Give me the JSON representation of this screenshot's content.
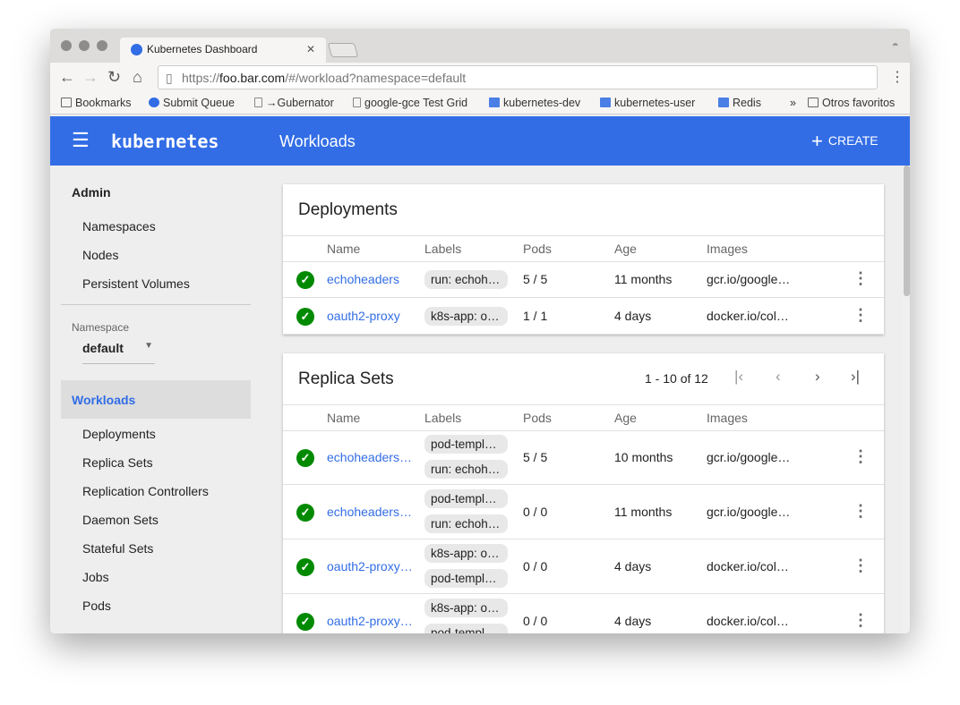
{
  "browser": {
    "tab_title": "Kubernetes Dashboard",
    "url_prefix": "https://",
    "url_host": "foo.bar.com",
    "url_path": "/#/workload?namespace=default",
    "bookmarks": [
      "Bookmarks",
      "Submit Queue",
      "→Gubernator",
      "google-gce Test Grid",
      "kubernetes-dev",
      "kubernetes-user",
      "Redis"
    ],
    "more": "»",
    "other": "Otros favoritos"
  },
  "header": {
    "logo": "kubernetes",
    "title": "Workloads",
    "create": "CREATE"
  },
  "sidebar": {
    "admin": "Admin",
    "admin_items": [
      "Namespaces",
      "Nodes",
      "Persistent Volumes"
    ],
    "namespace_label": "Namespace",
    "namespace_value": "default",
    "workloads": "Workloads",
    "workload_items": [
      "Deployments",
      "Replica Sets",
      "Replication Controllers",
      "Daemon Sets",
      "Stateful Sets",
      "Jobs",
      "Pods"
    ]
  },
  "columns": [
    "Name",
    "Labels",
    "Pods",
    "Age",
    "Images"
  ],
  "deployments": {
    "title": "Deployments",
    "rows": [
      {
        "name": "echoheaders",
        "labels": [
          "run: echoh…"
        ],
        "pods": "5 / 5",
        "age": "11 months",
        "images": "gcr.io/google…"
      },
      {
        "name": "oauth2-proxy",
        "labels": [
          "k8s-app: o…"
        ],
        "pods": "1 / 1",
        "age": "4 days",
        "images": "docker.io/col…"
      }
    ]
  },
  "replica_sets": {
    "title": "Replica Sets",
    "pagination": "1 - 10 of 12",
    "rows": [
      {
        "name": "echoheaders…",
        "labels": [
          "pod-templ…",
          "run: echoh…"
        ],
        "pods": "5 / 5",
        "age": "10 months",
        "images": "gcr.io/google…"
      },
      {
        "name": "echoheaders…",
        "labels": [
          "pod-templ…",
          "run: echoh…"
        ],
        "pods": "0 / 0",
        "age": "11 months",
        "images": "gcr.io/google…"
      },
      {
        "name": "oauth2-proxy…",
        "labels": [
          "k8s-app: o…",
          "pod-templ…"
        ],
        "pods": "0 / 0",
        "age": "4 days",
        "images": "docker.io/col…"
      },
      {
        "name": "oauth2-proxy…",
        "labels": [
          "k8s-app: o…",
          "pod-templ…"
        ],
        "pods": "0 / 0",
        "age": "4 days",
        "images": "docker.io/col…"
      }
    ]
  },
  "colors": {
    "primary": "#326de6",
    "success": "#008a00"
  }
}
